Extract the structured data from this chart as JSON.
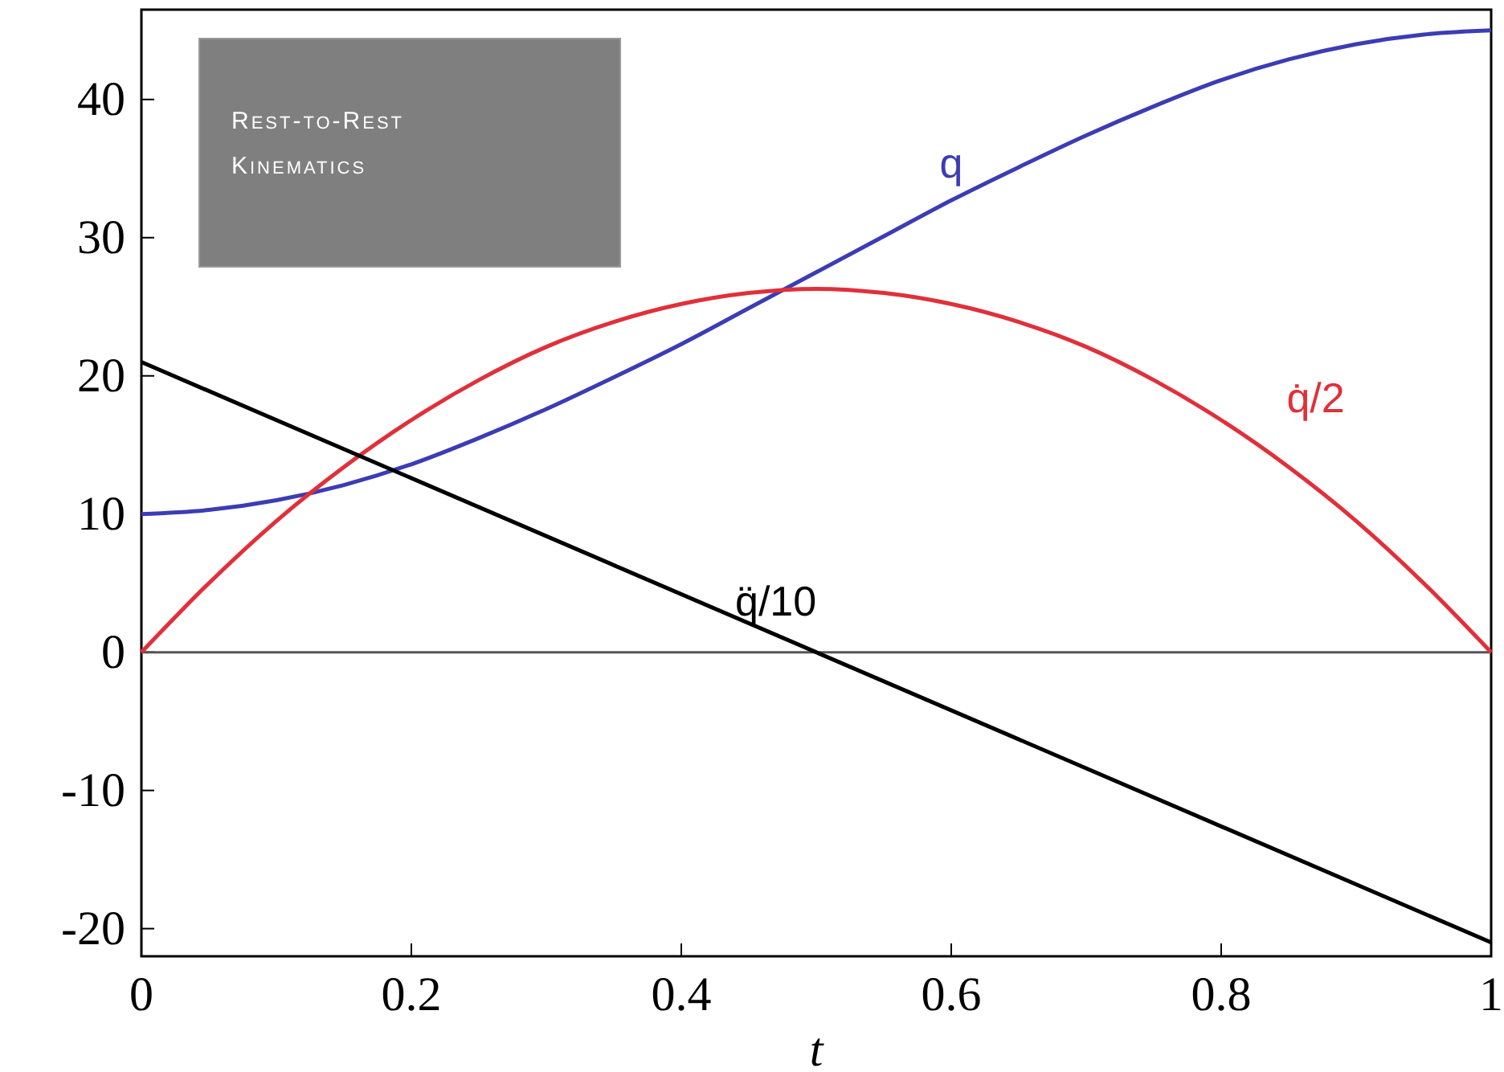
{
  "chart_data": {
    "type": "line",
    "xlabel": "t",
    "x": [
      0,
      0.05,
      0.1,
      0.15,
      0.2,
      0.25,
      0.3,
      0.35,
      0.4,
      0.45,
      0.5,
      0.55,
      0.6,
      0.65,
      0.7,
      0.75,
      0.8,
      0.85,
      0.9,
      0.95,
      1
    ],
    "series": [
      {
        "name": "q",
        "color": "#3c3cb4",
        "values": [
          10,
          10.3,
          11,
          12.1,
          13.6,
          15.5,
          17.6,
          19.9,
          22.3,
          24.9,
          27.5,
          30.1,
          32.7,
          35.1,
          37.4,
          39.5,
          41.4,
          42.9,
          44,
          44.7,
          45
        ]
      },
      {
        "name": "q̇/2",
        "color": "#e0303a",
        "values": [
          0,
          5,
          9.5,
          13.4,
          16.8,
          19.7,
          22.1,
          23.9,
          25.2,
          26,
          26.3,
          26,
          25.2,
          23.9,
          22.1,
          19.7,
          16.8,
          13.4,
          9.5,
          5,
          0
        ]
      },
      {
        "name": "q̈/10",
        "color": "#000000",
        "x": [
          0,
          1
        ],
        "values": [
          21,
          -21
        ]
      }
    ],
    "xlim": [
      0,
      1
    ],
    "xticks": [
      0,
      0.2,
      0.4,
      0.6,
      0.8,
      1
    ],
    "ylim": [
      -22,
      46.5
    ],
    "yticks": [
      -20,
      -10,
      0,
      10,
      20,
      30,
      40
    ],
    "ref_lines": [
      {
        "axis": "y",
        "value": 0,
        "color": "#555555"
      }
    ],
    "annotations": [
      "Rest-to-Rest Kinematics"
    ],
    "grid": false,
    "marker": "none",
    "line_style": "solid"
  }
}
